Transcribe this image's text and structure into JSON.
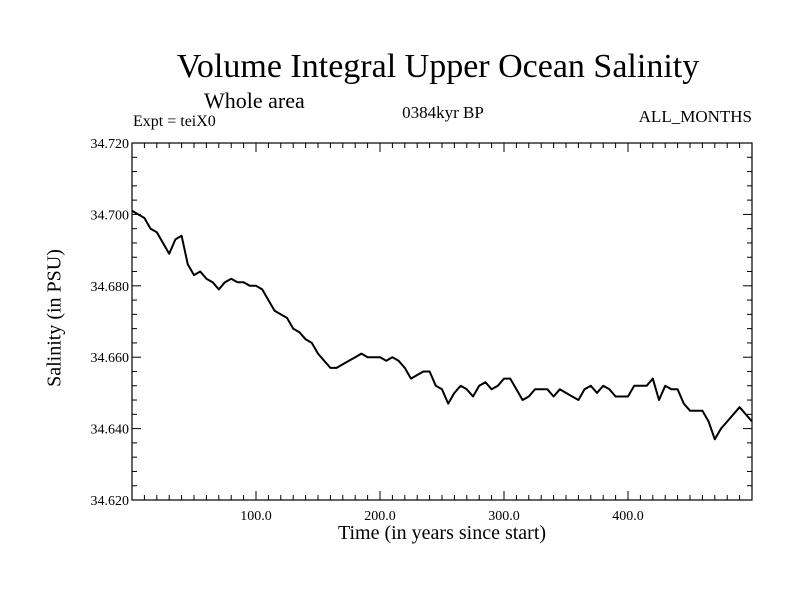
{
  "chart_data": {
    "type": "line",
    "title": "Volume Integral Upper Ocean Salinity",
    "subtitle": "Whole area",
    "annotations": {
      "experiment": "Expt = teiX0",
      "period": "0384kyr BP",
      "months": "ALL_MONTHS"
    },
    "xlabel": "Time (in years since start)",
    "ylabel": "Salinity (in PSU)",
    "xlim": [
      0,
      500
    ],
    "ylim": [
      34.62,
      34.72
    ],
    "x_ticks": [
      100,
      200,
      300,
      400
    ],
    "x_tick_labels": [
      "100.0",
      "200.0",
      "300.0",
      "400.0"
    ],
    "y_ticks": [
      34.62,
      34.64,
      34.66,
      34.68,
      34.7,
      34.72
    ],
    "y_tick_labels": [
      "34.620",
      "34.640",
      "34.660",
      "34.680",
      "34.700",
      "34.720"
    ],
    "grid": false,
    "line_color": "#000000",
    "series": [
      {
        "x": [
          0,
          5,
          10,
          15,
          20,
          25,
          30,
          35,
          40,
          45,
          50,
          55,
          60,
          65,
          70,
          75,
          80,
          85,
          90,
          95,
          100,
          105,
          110,
          115,
          120,
          125,
          130,
          135,
          140,
          145,
          150,
          155,
          160,
          165,
          170,
          175,
          180,
          185,
          190,
          195,
          200,
          205,
          210,
          215,
          220,
          225,
          230,
          235,
          240,
          245,
          250,
          255,
          260,
          265,
          270,
          275,
          280,
          285,
          290,
          295,
          300,
          305,
          310,
          315,
          320,
          325,
          330,
          335,
          340,
          345,
          350,
          355,
          360,
          365,
          370,
          375,
          380,
          385,
          390,
          395,
          400,
          405,
          410,
          415,
          420,
          425,
          430,
          435,
          440,
          445,
          450,
          455,
          460,
          465,
          470,
          475,
          480,
          485,
          490,
          495,
          500
        ],
        "y": [
          34.701,
          34.7,
          34.699,
          34.696,
          34.695,
          34.692,
          34.689,
          34.693,
          34.694,
          34.686,
          34.683,
          34.684,
          34.682,
          34.681,
          34.679,
          34.681,
          34.682,
          34.681,
          34.681,
          34.68,
          34.68,
          34.679,
          34.676,
          34.673,
          34.672,
          34.671,
          34.668,
          34.667,
          34.665,
          34.664,
          34.661,
          34.659,
          34.657,
          34.657,
          34.658,
          34.659,
          34.66,
          34.661,
          34.66,
          34.66,
          34.66,
          34.659,
          34.66,
          34.659,
          34.657,
          34.654,
          34.655,
          34.656,
          34.656,
          34.652,
          34.651,
          34.647,
          34.65,
          34.652,
          34.651,
          34.649,
          34.652,
          34.653,
          34.651,
          34.652,
          34.654,
          34.654,
          34.651,
          34.648,
          34.649,
          34.651,
          34.651,
          34.651,
          34.649,
          34.651,
          34.65,
          34.649,
          34.648,
          34.651,
          34.652,
          34.65,
          34.652,
          34.651,
          34.649,
          34.649,
          34.649,
          34.652,
          34.652,
          34.652,
          34.654,
          34.648,
          34.652,
          34.651,
          34.651,
          34.647,
          34.645,
          34.645,
          34.645,
          34.642,
          34.637,
          34.64,
          34.642,
          34.644,
          34.646,
          34.644,
          34.642
        ]
      }
    ]
  }
}
